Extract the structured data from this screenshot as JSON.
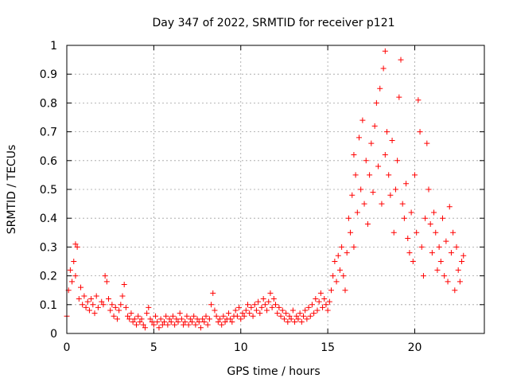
{
  "chart_data": {
    "type": "scatter",
    "title": "Day 347 of 2022, SRMTID for receiver p121",
    "xlabel": "GPS time / hours",
    "ylabel": "SRMTID / TECUs",
    "xlim": [
      0,
      24
    ],
    "ylim": [
      0,
      1
    ],
    "x_ticks": [
      0,
      5,
      10,
      15,
      20
    ],
    "x_tick_labels": [
      "0",
      "5",
      "10",
      "15",
      "20"
    ],
    "y_ticks": [
      0,
      0.1,
      0.2,
      0.3,
      0.4,
      0.5,
      0.6,
      0.7,
      0.8,
      0.9,
      1
    ],
    "y_tick_labels": [
      "0",
      "0.1",
      "0.2",
      "0.3",
      "0.4",
      "0.5",
      "0.6",
      "0.7",
      "0.8",
      "0.9",
      "1"
    ],
    "grid": true,
    "series": [
      {
        "name": "SRMTID",
        "marker": "+",
        "color": "#ff0000",
        "points": [
          [
            0.0,
            0.06
          ],
          [
            0.1,
            0.15
          ],
          [
            0.2,
            0.22
          ],
          [
            0.3,
            0.18
          ],
          [
            0.4,
            0.25
          ],
          [
            0.5,
            0.2
          ],
          [
            0.5,
            0.31
          ],
          [
            0.6,
            0.3
          ],
          [
            0.7,
            0.12
          ],
          [
            0.8,
            0.16
          ],
          [
            0.9,
            0.1
          ],
          [
            1.0,
            0.13
          ],
          [
            1.1,
            0.09
          ],
          [
            1.2,
            0.11
          ],
          [
            1.3,
            0.08
          ],
          [
            1.4,
            0.12
          ],
          [
            1.5,
            0.1
          ],
          [
            1.6,
            0.07
          ],
          [
            1.7,
            0.13
          ],
          [
            1.8,
            0.09
          ],
          [
            2.0,
            0.11
          ],
          [
            2.1,
            0.1
          ],
          [
            2.2,
            0.2
          ],
          [
            2.3,
            0.18
          ],
          [
            2.4,
            0.12
          ],
          [
            2.5,
            0.08
          ],
          [
            2.6,
            0.1
          ],
          [
            2.7,
            0.06
          ],
          [
            2.8,
            0.09
          ],
          [
            2.9,
            0.05
          ],
          [
            3.0,
            0.08
          ],
          [
            3.1,
            0.1
          ],
          [
            3.2,
            0.13
          ],
          [
            3.3,
            0.17
          ],
          [
            3.4,
            0.09
          ],
          [
            3.5,
            0.06
          ],
          [
            3.6,
            0.05
          ],
          [
            3.7,
            0.07
          ],
          [
            3.8,
            0.04
          ],
          [
            3.9,
            0.05
          ],
          [
            4.0,
            0.03
          ],
          [
            4.1,
            0.06
          ],
          [
            4.2,
            0.04
          ],
          [
            4.3,
            0.05
          ],
          [
            4.4,
            0.03
          ],
          [
            4.5,
            0.02
          ],
          [
            4.6,
            0.07
          ],
          [
            4.7,
            0.09
          ],
          [
            4.8,
            0.05
          ],
          [
            4.9,
            0.04
          ],
          [
            5.0,
            0.03
          ],
          [
            5.1,
            0.06
          ],
          [
            5.2,
            0.04
          ],
          [
            5.3,
            0.02
          ],
          [
            5.4,
            0.05
          ],
          [
            5.5,
            0.03
          ],
          [
            5.6,
            0.04
          ],
          [
            5.7,
            0.06
          ],
          [
            5.8,
            0.03
          ],
          [
            5.9,
            0.05
          ],
          [
            6.0,
            0.04
          ],
          [
            6.1,
            0.06
          ],
          [
            6.2,
            0.03
          ],
          [
            6.3,
            0.05
          ],
          [
            6.4,
            0.04
          ],
          [
            6.5,
            0.07
          ],
          [
            6.6,
            0.05
          ],
          [
            6.7,
            0.03
          ],
          [
            6.8,
            0.04
          ],
          [
            6.9,
            0.06
          ],
          [
            7.0,
            0.03
          ],
          [
            7.1,
            0.05
          ],
          [
            7.2,
            0.04
          ],
          [
            7.3,
            0.06
          ],
          [
            7.4,
            0.03
          ],
          [
            7.5,
            0.05
          ],
          [
            7.6,
            0.04
          ],
          [
            7.7,
            0.02
          ],
          [
            7.8,
            0.05
          ],
          [
            7.9,
            0.04
          ],
          [
            8.0,
            0.06
          ],
          [
            8.1,
            0.03
          ],
          [
            8.2,
            0.05
          ],
          [
            8.3,
            0.1
          ],
          [
            8.4,
            0.14
          ],
          [
            8.5,
            0.08
          ],
          [
            8.6,
            0.06
          ],
          [
            8.7,
            0.04
          ],
          [
            8.8,
            0.05
          ],
          [
            8.9,
            0.03
          ],
          [
            9.0,
            0.06
          ],
          [
            9.1,
            0.04
          ],
          [
            9.2,
            0.05
          ],
          [
            9.3,
            0.07
          ],
          [
            9.4,
            0.05
          ],
          [
            9.5,
            0.04
          ],
          [
            9.6,
            0.06
          ],
          [
            9.7,
            0.08
          ],
          [
            9.8,
            0.06
          ],
          [
            9.9,
            0.09
          ],
          [
            10.0,
            0.05
          ],
          [
            10.1,
            0.07
          ],
          [
            10.2,
            0.06
          ],
          [
            10.3,
            0.08
          ],
          [
            10.4,
            0.1
          ],
          [
            10.5,
            0.07
          ],
          [
            10.6,
            0.09
          ],
          [
            10.7,
            0.06
          ],
          [
            10.8,
            0.1
          ],
          [
            10.9,
            0.08
          ],
          [
            11.0,
            0.11
          ],
          [
            11.1,
            0.07
          ],
          [
            11.2,
            0.09
          ],
          [
            11.3,
            0.12
          ],
          [
            11.4,
            0.1
          ],
          [
            11.5,
            0.08
          ],
          [
            11.6,
            0.11
          ],
          [
            11.7,
            0.14
          ],
          [
            11.8,
            0.09
          ],
          [
            11.9,
            0.12
          ],
          [
            12.0,
            0.1
          ],
          [
            12.1,
            0.07
          ],
          [
            12.2,
            0.09
          ],
          [
            12.3,
            0.06
          ],
          [
            12.4,
            0.08
          ],
          [
            12.5,
            0.05
          ],
          [
            12.6,
            0.07
          ],
          [
            12.7,
            0.04
          ],
          [
            12.8,
            0.06
          ],
          [
            12.9,
            0.05
          ],
          [
            13.0,
            0.08
          ],
          [
            13.1,
            0.04
          ],
          [
            13.2,
            0.06
          ],
          [
            13.3,
            0.05
          ],
          [
            13.4,
            0.07
          ],
          [
            13.5,
            0.04
          ],
          [
            13.6,
            0.06
          ],
          [
            13.7,
            0.08
          ],
          [
            13.8,
            0.05
          ],
          [
            13.9,
            0.09
          ],
          [
            14.0,
            0.06
          ],
          [
            14.1,
            0.1
          ],
          [
            14.2,
            0.07
          ],
          [
            14.3,
            0.12
          ],
          [
            14.4,
            0.08
          ],
          [
            14.5,
            0.11
          ],
          [
            14.6,
            0.14
          ],
          [
            14.7,
            0.09
          ],
          [
            14.8,
            0.12
          ],
          [
            14.9,
            0.1
          ],
          [
            15.0,
            0.08
          ],
          [
            15.1,
            0.11
          ],
          [
            15.2,
            0.15
          ],
          [
            15.3,
            0.2
          ],
          [
            15.4,
            0.25
          ],
          [
            15.5,
            0.18
          ],
          [
            15.6,
            0.27
          ],
          [
            15.7,
            0.22
          ],
          [
            15.8,
            0.3
          ],
          [
            15.9,
            0.2
          ],
          [
            16.0,
            0.15
          ],
          [
            16.1,
            0.28
          ],
          [
            16.2,
            0.4
          ],
          [
            16.3,
            0.35
          ],
          [
            16.4,
            0.48
          ],
          [
            16.5,
            0.3
          ],
          [
            16.5,
            0.62
          ],
          [
            16.6,
            0.55
          ],
          [
            16.7,
            0.42
          ],
          [
            16.8,
            0.68
          ],
          [
            16.9,
            0.5
          ],
          [
            17.0,
            0.74
          ],
          [
            17.1,
            0.45
          ],
          [
            17.2,
            0.6
          ],
          [
            17.3,
            0.38
          ],
          [
            17.4,
            0.55
          ],
          [
            17.5,
            0.66
          ],
          [
            17.6,
            0.49
          ],
          [
            17.7,
            0.72
          ],
          [
            17.8,
            0.8
          ],
          [
            17.9,
            0.58
          ],
          [
            18.0,
            0.85
          ],
          [
            18.1,
            0.45
          ],
          [
            18.2,
            0.92
          ],
          [
            18.3,
            0.62
          ],
          [
            18.3,
            0.98
          ],
          [
            18.4,
            0.7
          ],
          [
            18.5,
            0.55
          ],
          [
            18.6,
            0.48
          ],
          [
            18.7,
            0.67
          ],
          [
            18.8,
            0.35
          ],
          [
            18.9,
            0.5
          ],
          [
            19.0,
            0.6
          ],
          [
            19.1,
            0.82
          ],
          [
            19.2,
            0.95
          ],
          [
            19.3,
            0.45
          ],
          [
            19.4,
            0.4
          ],
          [
            19.5,
            0.52
          ],
          [
            19.6,
            0.33
          ],
          [
            19.7,
            0.28
          ],
          [
            19.8,
            0.42
          ],
          [
            19.9,
            0.25
          ],
          [
            20.0,
            0.55
          ],
          [
            20.1,
            0.35
          ],
          [
            20.2,
            0.81
          ],
          [
            20.3,
            0.7
          ],
          [
            20.4,
            0.3
          ],
          [
            20.5,
            0.2
          ],
          [
            20.6,
            0.4
          ],
          [
            20.7,
            0.66
          ],
          [
            20.8,
            0.5
          ],
          [
            20.9,
            0.38
          ],
          [
            21.0,
            0.28
          ],
          [
            21.1,
            0.42
          ],
          [
            21.2,
            0.35
          ],
          [
            21.3,
            0.22
          ],
          [
            21.4,
            0.3
          ],
          [
            21.5,
            0.25
          ],
          [
            21.6,
            0.4
          ],
          [
            21.7,
            0.2
          ],
          [
            21.8,
            0.32
          ],
          [
            21.9,
            0.18
          ],
          [
            22.0,
            0.44
          ],
          [
            22.1,
            0.28
          ],
          [
            22.2,
            0.35
          ],
          [
            22.3,
            0.15
          ],
          [
            22.4,
            0.3
          ],
          [
            22.5,
            0.22
          ],
          [
            22.6,
            0.18
          ],
          [
            22.7,
            0.25
          ],
          [
            22.8,
            0.27
          ]
        ]
      }
    ]
  }
}
